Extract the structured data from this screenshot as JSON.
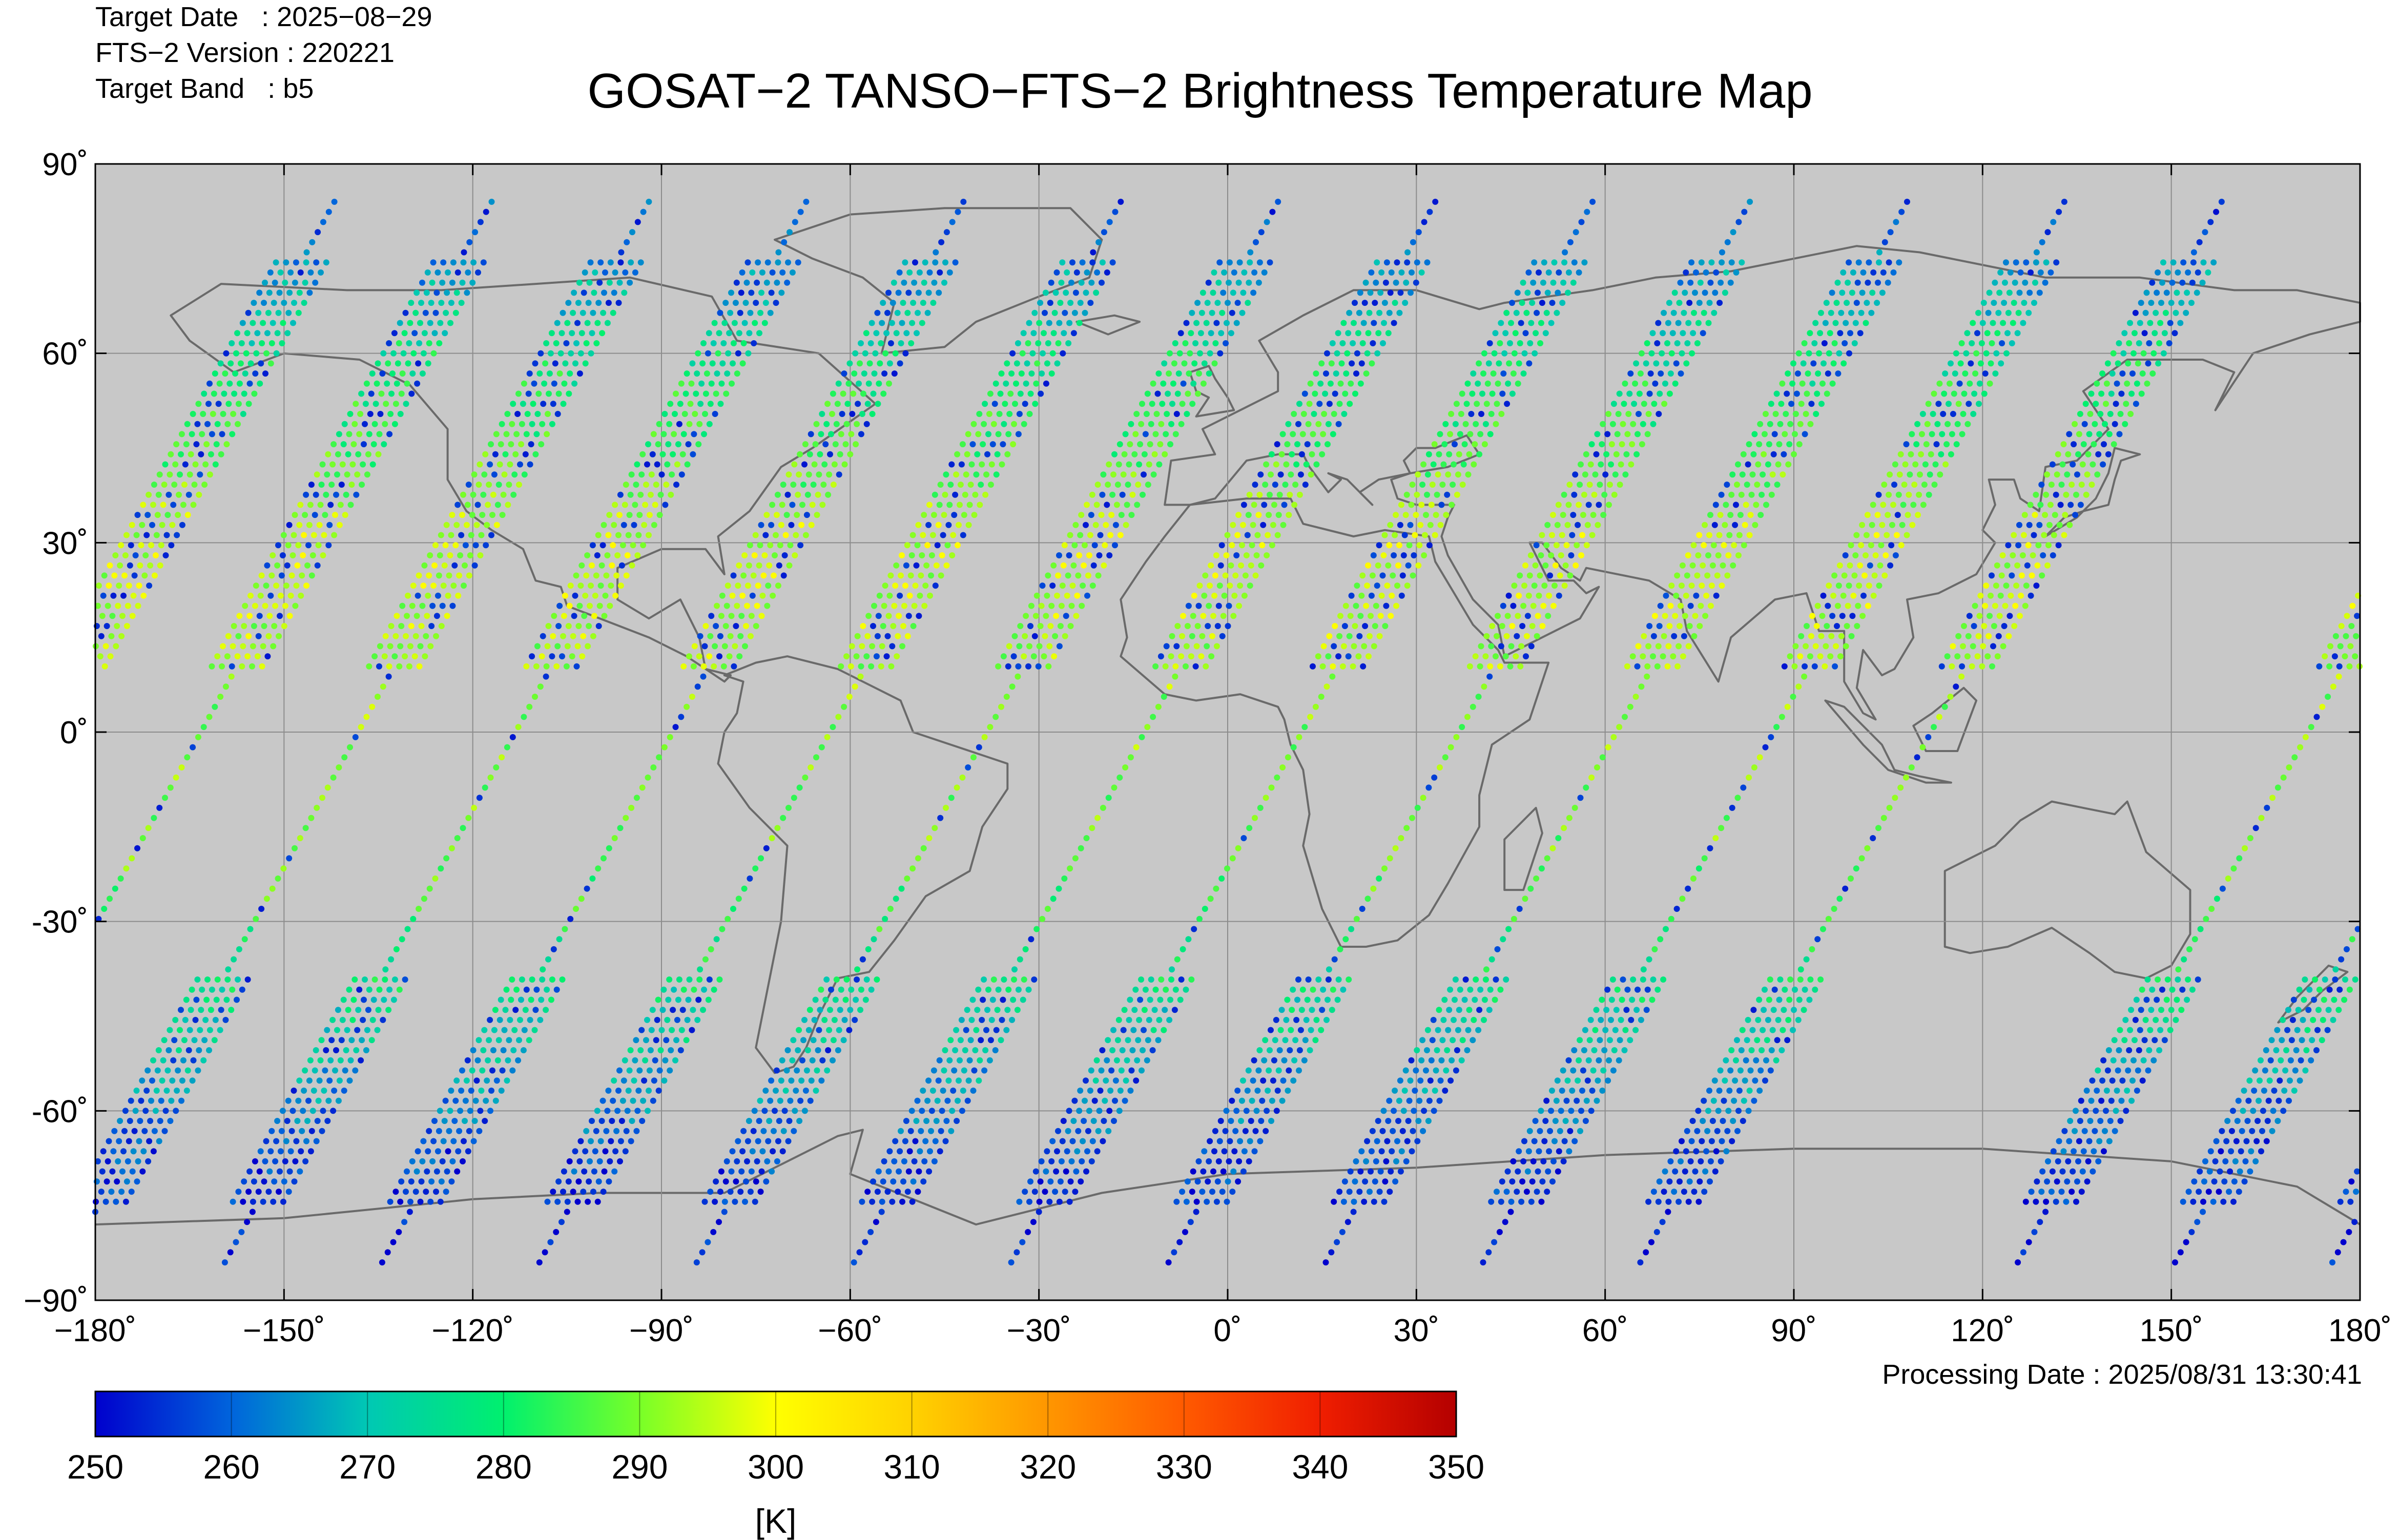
{
  "header": {
    "target_date": "Target Date   : 2025−08−29",
    "fts_version": "FTS−2 Version : 220221",
    "target_band": "Target Band   : b5",
    "title": "GOSAT−2 TANSO−FTS−2 Brightness Temperature Map"
  },
  "footer": {
    "processing_date": "Processing Date : 2025/08/31 13:30:41"
  },
  "chart_data": {
    "type": "scatter",
    "title": "GOSAT−2 TANSO−FTS−2 Brightness Temperature Map",
    "map_projection": "equirectangular",
    "xlim": [
      -180,
      180
    ],
    "ylim": [
      -90,
      90
    ],
    "grid": true,
    "background_color": "#c8c8c8",
    "coastline_color": "#666666",
    "x_tick_values": [
      -180,
      -150,
      -120,
      -90,
      -60,
      -30,
      0,
      30,
      60,
      90,
      120,
      150,
      180
    ],
    "x_tick_labels": [
      "−180˚",
      "−150˚",
      "−120˚",
      "−90˚",
      "−60˚",
      "−30˚",
      "0˚",
      "30˚",
      "60˚",
      "90˚",
      "120˚",
      "150˚",
      "180˚"
    ],
    "y_tick_values": [
      90,
      60,
      30,
      0,
      -30,
      -60,
      -90
    ],
    "y_tick_labels": [
      "90˚",
      "60˚",
      "30˚",
      "0˚",
      "-30˚",
      "-60˚",
      "−90˚"
    ],
    "colorbar": {
      "min": 250,
      "max": 350,
      "tick_values": [
        250,
        260,
        270,
        280,
        290,
        300,
        310,
        320,
        330,
        340,
        350
      ],
      "tick_labels": [
        "250",
        "260",
        "270",
        "280",
        "290",
        "300",
        "310",
        "320",
        "330",
        "340",
        "350"
      ],
      "unit_label": "[K]",
      "colormap": [
        "#0000cd",
        "#0064dc",
        "#00c8b4",
        "#00f06e",
        "#78ff28",
        "#ffff00",
        "#ffd200",
        "#ff9600",
        "#ff5a00",
        "#f01e00",
        "#b40000"
      ]
    },
    "swath_spacing_deg": 25,
    "swath_start_lons_at_north": [
      -142,
      -117,
      -92,
      -67,
      -42,
      -17,
      8,
      33,
      58,
      83,
      108,
      133,
      158
    ],
    "swath_lat_range": [
      -84,
      84
    ],
    "swath_drift_deg_per_lat": -0.55,
    "temperature_by_latitude_K": [
      {
        "lat": 80,
        "T": 258
      },
      {
        "lat": 60,
        "T": 278
      },
      {
        "lat": 45,
        "T": 285
      },
      {
        "lat": 30,
        "T": 295
      },
      {
        "lat": 10,
        "T": 292
      },
      {
        "lat": 0,
        "T": 290
      },
      {
        "lat": -20,
        "T": 288
      },
      {
        "lat": -35,
        "T": 280
      },
      {
        "lat": -50,
        "T": 270
      },
      {
        "lat": -65,
        "T": 258
      },
      {
        "lat": -80,
        "T": 252
      }
    ]
  }
}
